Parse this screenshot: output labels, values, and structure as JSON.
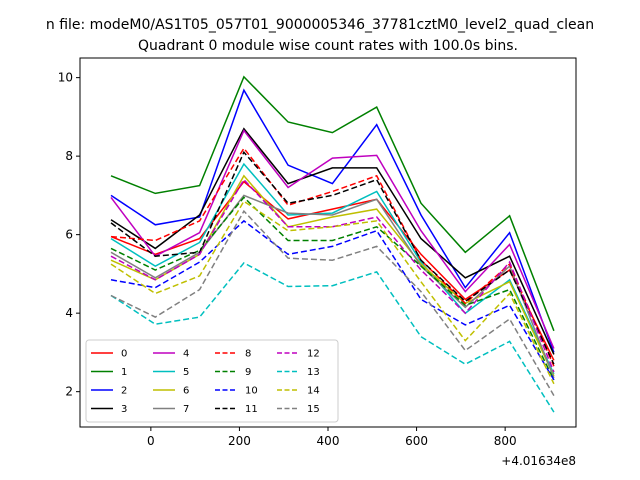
{
  "chart_data": {
    "type": "line",
    "suptitle": "n file: modeM0/AS1T05_057T01_9000005346_37781cztM0_level2_quad_clean",
    "title": "Quadrant 0 module wise count rates with 100.0s bins.",
    "xlabel": "",
    "ylabel": "",
    "x_offset_label": "+4.01634e8",
    "x": [
      -90,
      10,
      110,
      210,
      310,
      410,
      510,
      610,
      710,
      810,
      910
    ],
    "xlim": [
      -160,
      960
    ],
    "ylim": [
      1.1,
      10.5
    ],
    "xticks": [
      0,
      200,
      400,
      600,
      800
    ],
    "yticks": [
      2,
      4,
      6,
      8,
      10
    ],
    "grid": false,
    "legend": {
      "position": "lower-left",
      "ncol": 4
    },
    "series": [
      {
        "name": "0",
        "color": "#ff0000",
        "dash": "solid",
        "values": [
          5.95,
          5.5,
          5.9,
          7.35,
          6.4,
          6.65,
          6.9,
          5.5,
          4.35,
          5.1,
          2.8
        ]
      },
      {
        "name": "1",
        "color": "#008000",
        "dash": "solid",
        "values": [
          7.5,
          7.05,
          7.25,
          10.02,
          8.87,
          8.6,
          9.25,
          6.8,
          5.55,
          6.48,
          3.55
        ]
      },
      {
        "name": "2",
        "color": "#0000ff",
        "dash": "solid",
        "values": [
          7.0,
          6.25,
          6.45,
          9.68,
          7.77,
          7.3,
          8.8,
          6.5,
          4.65,
          6.05,
          3.0
        ]
      },
      {
        "name": "3",
        "color": "#000000",
        "dash": "solid",
        "values": [
          6.38,
          5.65,
          6.5,
          8.7,
          7.3,
          7.7,
          7.7,
          5.9,
          4.9,
          5.45,
          2.95
        ]
      },
      {
        "name": "4",
        "color": "#bf00bf",
        "dash": "solid",
        "values": [
          6.95,
          5.45,
          6.05,
          8.65,
          7.2,
          7.95,
          8.02,
          6.1,
          4.55,
          5.75,
          3.1
        ]
      },
      {
        "name": "5",
        "color": "#00bfbf",
        "dash": "solid",
        "values": [
          5.9,
          5.2,
          5.8,
          7.8,
          6.5,
          6.55,
          7.1,
          5.3,
          4.0,
          4.85,
          2.45
        ]
      },
      {
        "name": "6",
        "color": "#bfbf00",
        "dash": "solid",
        "values": [
          5.35,
          4.85,
          5.5,
          7.5,
          6.2,
          6.45,
          6.65,
          5.25,
          4.25,
          4.8,
          2.4
        ]
      },
      {
        "name": "7",
        "color": "#808080",
        "dash": "solid",
        "values": [
          5.55,
          4.9,
          5.55,
          7.0,
          6.55,
          6.5,
          6.9,
          5.2,
          4.15,
          5.2,
          2.35
        ]
      },
      {
        "name": "8",
        "color": "#ff0000",
        "dash": "dashed",
        "values": [
          5.95,
          5.85,
          6.35,
          8.2,
          6.75,
          7.1,
          7.5,
          5.35,
          4.25,
          5.25,
          2.65
        ]
      },
      {
        "name": "9",
        "color": "#008000",
        "dash": "dashed",
        "values": [
          5.65,
          5.1,
          5.6,
          6.95,
          5.85,
          5.85,
          6.2,
          5.2,
          4.2,
          4.6,
          2.3
        ]
      },
      {
        "name": "10",
        "color": "#0000ff",
        "dash": "dashed",
        "values": [
          4.85,
          4.65,
          5.3,
          6.35,
          5.5,
          5.7,
          6.1,
          4.35,
          3.7,
          4.2,
          2.3
        ]
      },
      {
        "name": "11",
        "color": "#000000",
        "dash": "dashed",
        "values": [
          6.3,
          5.45,
          5.55,
          8.1,
          6.8,
          7.0,
          7.4,
          5.35,
          4.3,
          5.1,
          2.7
        ]
      },
      {
        "name": "12",
        "color": "#bf00bf",
        "dash": "dashed",
        "values": [
          5.45,
          4.85,
          5.5,
          7.4,
          6.2,
          6.2,
          6.45,
          5.1,
          4.0,
          5.3,
          2.5
        ]
      },
      {
        "name": "13",
        "color": "#00bfbf",
        "dash": "dashed",
        "values": [
          4.45,
          3.72,
          3.9,
          5.28,
          4.68,
          4.7,
          5.05,
          3.4,
          2.7,
          3.28,
          1.48
        ]
      },
      {
        "name": "14",
        "color": "#bfbf00",
        "dash": "dashed",
        "values": [
          5.25,
          4.5,
          4.95,
          6.85,
          6.1,
          6.2,
          6.35,
          4.8,
          3.3,
          4.5,
          2.2
        ]
      },
      {
        "name": "15",
        "color": "#808080",
        "dash": "dashed",
        "values": [
          4.45,
          3.9,
          4.6,
          6.6,
          5.4,
          5.35,
          5.7,
          4.55,
          3.05,
          3.85,
          1.9
        ]
      }
    ]
  }
}
